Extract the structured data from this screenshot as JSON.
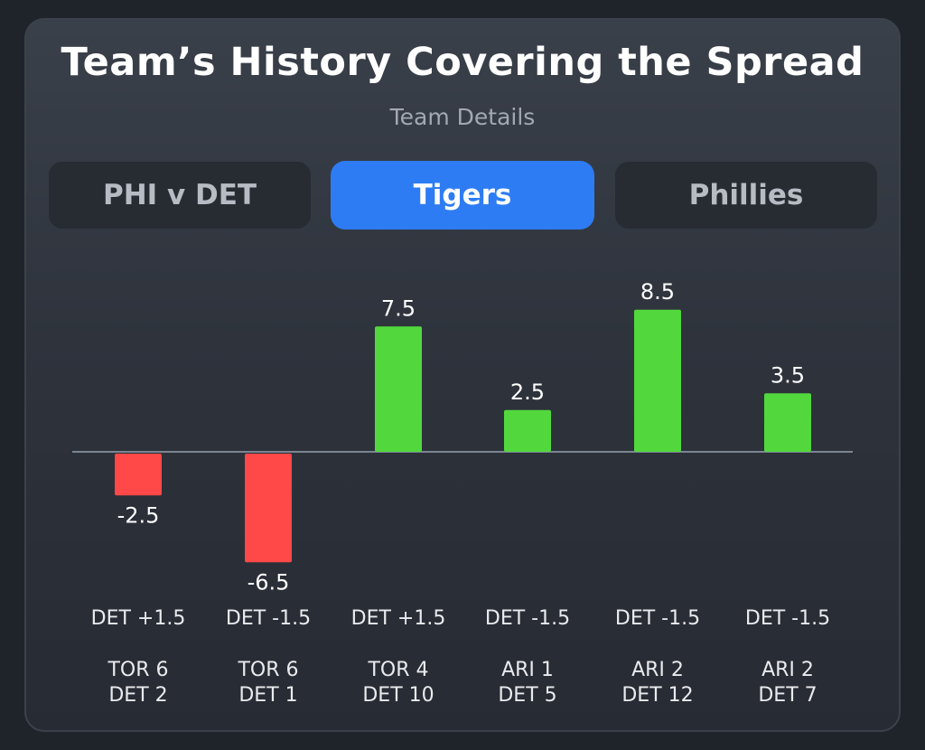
{
  "header": {
    "title": "Team’s History Covering the Spread",
    "subtitle": "Team Details"
  },
  "tabs": [
    {
      "label": "PHI v DET",
      "active": false
    },
    {
      "label": "Tigers",
      "active": true
    },
    {
      "label": "Phillies",
      "active": false
    }
  ],
  "colors": {
    "positive": "#52d83c",
    "negative": "#ff4848",
    "accent": "#2e7cf3"
  },
  "chart_data": {
    "type": "bar",
    "title": "Team’s History Covering the Spread",
    "subtitle": "Team Details",
    "categories": [
      "DET +1.5",
      "DET -1.5",
      "DET +1.5",
      "DET -1.5",
      "DET -1.5",
      "DET -1.5"
    ],
    "values": [
      -2.5,
      -6.5,
      7.5,
      2.5,
      8.5,
      3.5
    ],
    "data_labels": [
      "-2.5",
      "-6.5",
      "7.5",
      "2.5",
      "8.5",
      "3.5"
    ],
    "scores": [
      [
        "TOR 6",
        "DET 2"
      ],
      [
        "TOR 6",
        "DET 1"
      ],
      [
        "TOR 4",
        "DET 10"
      ],
      [
        "ARI 1",
        "DET 5"
      ],
      [
        "ARI 2",
        "DET 12"
      ],
      [
        "ARI 2",
        "DET 7"
      ]
    ],
    "ylim": [
      -6.5,
      8.5
    ],
    "grid": false,
    "legend": "none"
  }
}
